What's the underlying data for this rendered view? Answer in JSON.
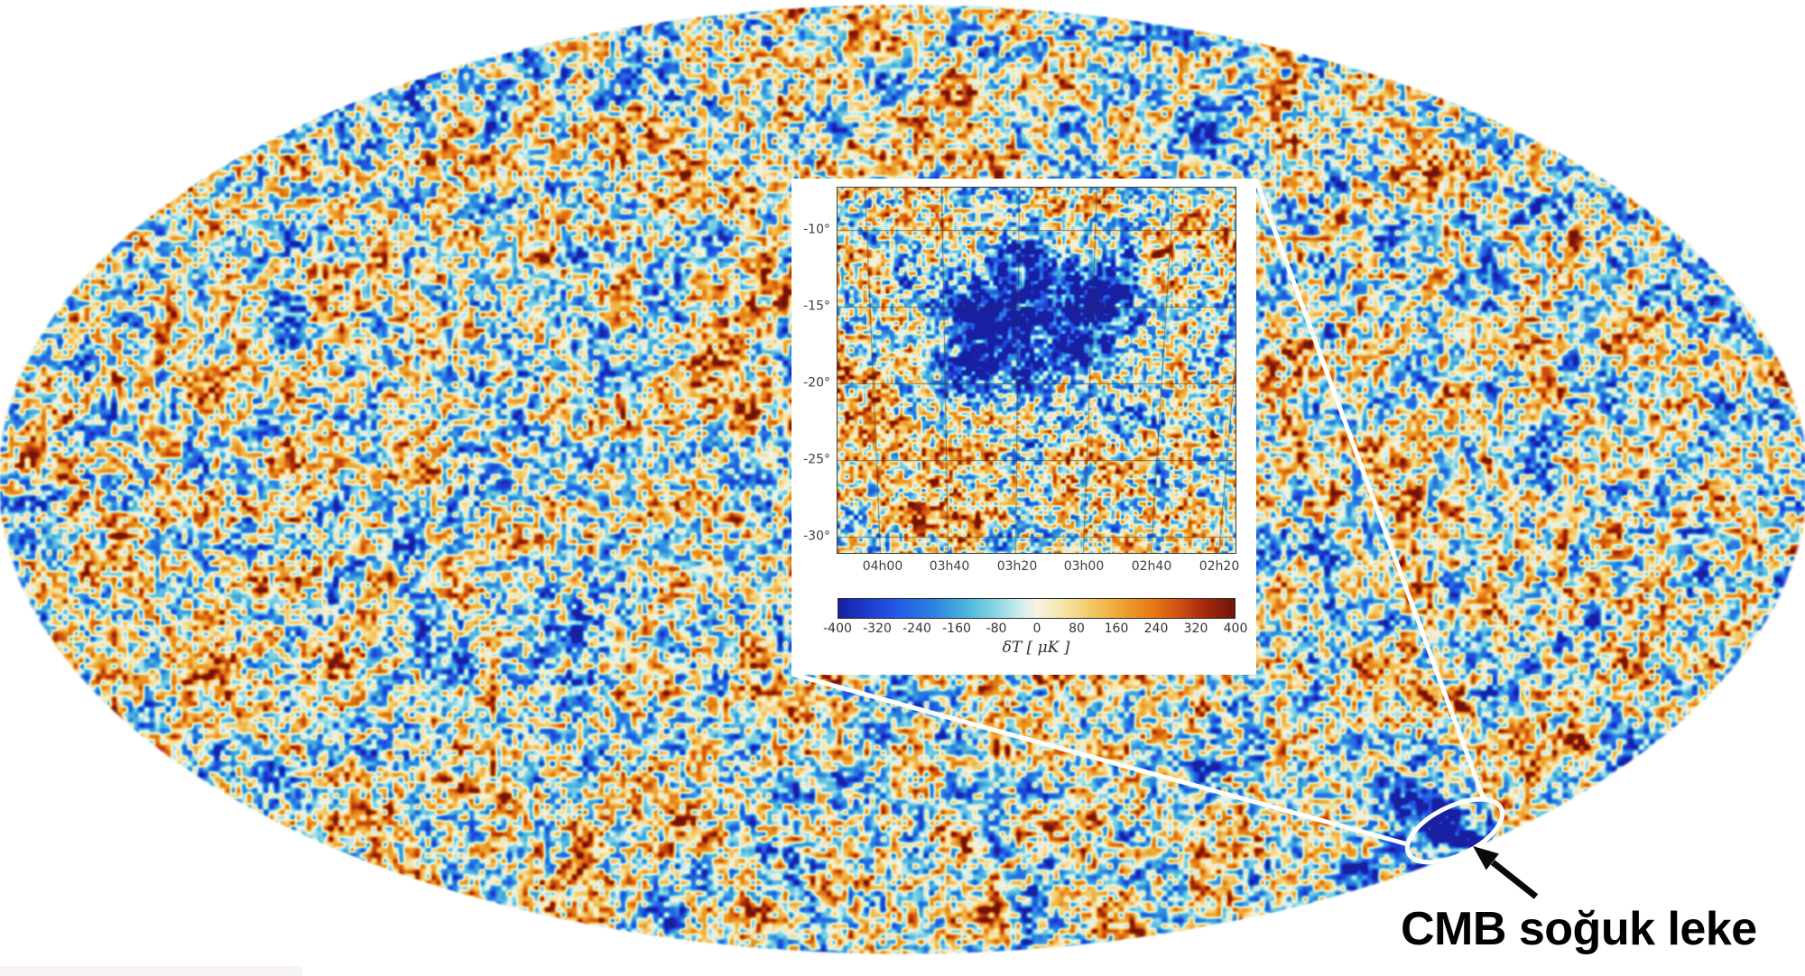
{
  "figure": {
    "annotation": "CMB soğuk leke"
  },
  "inset": {
    "y_ticks": [
      "-10°",
      "-15°",
      "-20°",
      "-25°",
      "-30°"
    ],
    "x_ticks": [
      "04h00",
      "03h40",
      "03h20",
      "03h00",
      "02h40",
      "02h20"
    ],
    "colorbar": {
      "ticks": [
        "-400",
        "-320",
        "-240",
        "-160",
        "-80",
        "0",
        "80",
        "160",
        "240",
        "320",
        "400"
      ],
      "label": "δT [ μK ]"
    }
  },
  "colors": {
    "background": "#ffffff",
    "annotation_text": "#000000",
    "callout_stroke": "#ffffff",
    "arrow": "#0a0a0a",
    "plot_frame": "#3f3f3f",
    "tick_text": "#3d3d3d",
    "grid_line": "#4a4232",
    "colormap": [
      {
        "t": 0.0,
        "c": "#181fa0"
      },
      {
        "t": 0.06,
        "c": "#1e36c8"
      },
      {
        "t": 0.14,
        "c": "#2356e4"
      },
      {
        "t": 0.24,
        "c": "#2b82e0"
      },
      {
        "t": 0.32,
        "c": "#49b4dc"
      },
      {
        "t": 0.4,
        "c": "#8cd8e4"
      },
      {
        "t": 0.46,
        "c": "#cfeef0"
      },
      {
        "t": 0.5,
        "c": "#f8f3e2"
      },
      {
        "t": 0.56,
        "c": "#f6e6b0"
      },
      {
        "t": 0.63,
        "c": "#f3cc6c"
      },
      {
        "t": 0.71,
        "c": "#eda633"
      },
      {
        "t": 0.79,
        "c": "#e57c15"
      },
      {
        "t": 0.86,
        "c": "#cf4f12"
      },
      {
        "t": 0.92,
        "c": "#a62b0e"
      },
      {
        "t": 1.0,
        "c": "#701409"
      }
    ]
  },
  "chart_data": [
    {
      "type": "heatmap",
      "name": "cmb-allsky-map",
      "projection": "mollweide-ellipse",
      "axes_visible": false,
      "colormap_range_uK": [
        -400,
        400
      ],
      "marked_feature": "cold spot (white ellipse marker, lower right)",
      "annotations": [
        "CMB soğuk leke"
      ]
    },
    {
      "type": "heatmap",
      "name": "cold-spot-inset",
      "x_tick_labels": [
        "04h00",
        "03h40",
        "03h20",
        "03h00",
        "02h40",
        "02h20"
      ],
      "y_tick_labels": [
        "-10°",
        "-15°",
        "-20°",
        "-25°",
        "-30°"
      ],
      "grid": true,
      "legend_position": "colorbar-bottom",
      "colorbar": {
        "tick_values": [
          -400,
          -320,
          -240,
          -160,
          -80,
          0,
          80,
          160,
          240,
          320,
          400
        ],
        "label": "δT [ μK ]",
        "range": [
          -400,
          400
        ]
      }
    }
  ]
}
